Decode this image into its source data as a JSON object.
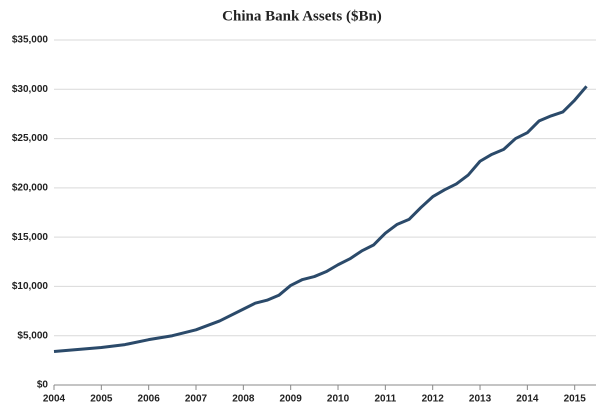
{
  "chart_data": {
    "type": "line",
    "title": "China Bank Assets ($Bn)",
    "x": [
      2004,
      2004.5,
      2005,
      2005.5,
      2006,
      2006.5,
      2007,
      2007.5,
      2008,
      2008.25,
      2008.5,
      2008.75,
      2009,
      2009.25,
      2009.5,
      2009.75,
      2010,
      2010.25,
      2010.5,
      2010.75,
      2011,
      2011.25,
      2011.5,
      2011.75,
      2012,
      2012.25,
      2012.5,
      2012.75,
      2013,
      2013.25,
      2013.5,
      2013.75,
      2014,
      2014.25,
      2014.5,
      2014.75,
      2015,
      2015.25
    ],
    "series": [
      {
        "name": "China Bank Assets",
        "color": "#2b4a6a",
        "values": [
          3400,
          3600,
          3800,
          4100,
          4600,
          5000,
          5600,
          6500,
          7700,
          8300,
          8600,
          9100,
          10100,
          10700,
          11000,
          11500,
          12200,
          12800,
          13600,
          14200,
          15400,
          16300,
          16800,
          18000,
          19100,
          19800,
          20400,
          21300,
          22700,
          23400,
          23900,
          25000,
          25600,
          26800,
          27300,
          27700,
          28900,
          30300
        ]
      }
    ],
    "xlim": [
      2004,
      2015.45
    ],
    "xticks": [
      2004,
      2005,
      2006,
      2007,
      2008,
      2009,
      2010,
      2011,
      2012,
      2013,
      2014,
      2015
    ],
    "ylim": [
      0,
      35000
    ],
    "yticks": [
      {
        "value": 0,
        "label": "$0"
      },
      {
        "value": 5000,
        "label": "$5,000"
      },
      {
        "value": 10000,
        "label": "$10,000"
      },
      {
        "value": 15000,
        "label": "$15,000"
      },
      {
        "value": 20000,
        "label": "$20,000"
      },
      {
        "value": 25000,
        "label": "$25,000"
      },
      {
        "value": 30000,
        "label": "$30,000"
      },
      {
        "value": 35000,
        "label": "$35,000"
      }
    ],
    "grid": true
  }
}
